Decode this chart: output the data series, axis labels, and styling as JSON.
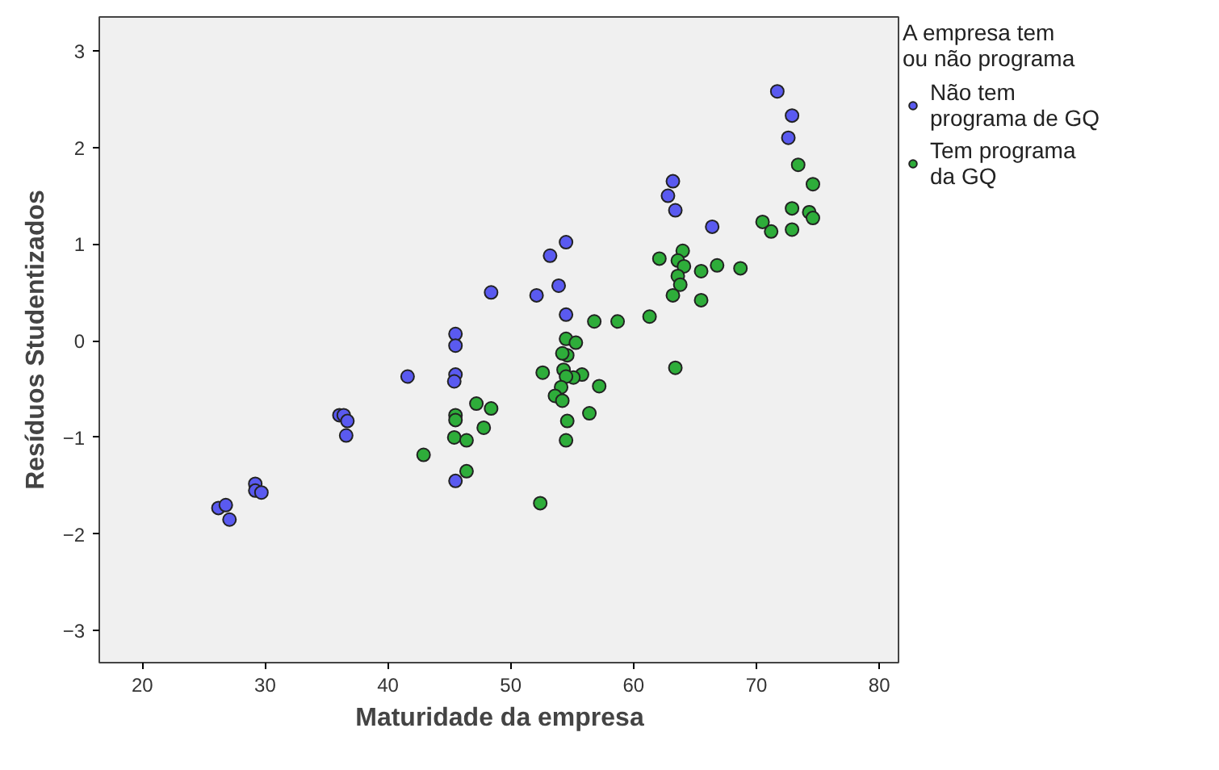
{
  "chart_data": {
    "type": "scatter",
    "xlabel": "Maturidade da empresa",
    "ylabel": "Resíduos Studentizados",
    "legend_title": "A empresa tem\nou não programa",
    "xlim": [
      16.5,
      81.7
    ],
    "ylim": [
      -3.33,
      3.35
    ],
    "xticks": [
      20,
      30,
      40,
      50,
      60,
      70,
      80
    ],
    "yticks": [
      -3,
      -2,
      -1,
      0,
      1,
      2,
      3
    ],
    "grid": false,
    "legend": "right",
    "marker": "circle",
    "series": [
      {
        "name": "Não tem\nprograma de GQ",
        "color": "#5a5af0",
        "x": [
          26.2,
          26.8,
          27.1,
          29.2,
          29.2,
          29.7,
          36.05,
          36.4,
          36.7,
          36.6,
          41.6,
          45.5,
          45.5,
          45.5,
          45.4,
          45.5,
          72.6,
          71.7,
          72.9,
          63.2,
          62.8,
          63.4,
          66.4,
          54.5,
          53.2,
          53.9,
          52.1,
          48.4,
          54.5
        ],
        "values": [
          -1.73,
          -1.7,
          -1.85,
          -1.48,
          -1.55,
          -1.57,
          -0.77,
          -0.77,
          -0.83,
          -0.98,
          -0.37,
          0.07,
          -0.05,
          -0.35,
          -0.42,
          -1.45,
          2.1,
          2.58,
          2.33,
          1.65,
          1.5,
          1.35,
          1.18,
          1.02,
          0.88,
          0.57,
          0.47,
          0.5,
          0.27
        ]
      },
      {
        "name": "Tem programa\nda GQ",
        "color": "#2ead3a",
        "x": [
          47.2,
          48.4,
          47.8,
          45.5,
          45.5,
          45.4,
          46.4,
          42.9,
          46.4,
          73.4,
          74.6,
          72.9,
          74.3,
          74.6,
          70.5,
          71.2,
          72.9,
          64.0,
          62.1,
          63.6,
          64.1,
          65.5,
          66.8,
          68.7,
          63.6,
          63.8,
          63.2,
          65.5,
          63.4,
          56.8,
          58.7,
          61.3,
          54.5,
          55.3,
          54.6,
          54.2,
          52.6,
          54.3,
          55.8,
          55.1,
          54.5,
          57.2,
          54.1,
          53.6,
          54.2,
          56.4,
          54.6,
          54.5,
          52.4
        ],
        "values": [
          -0.65,
          -0.7,
          -0.9,
          -0.77,
          -0.82,
          -1.0,
          -1.03,
          -1.18,
          -1.35,
          1.82,
          1.62,
          1.37,
          1.33,
          1.27,
          1.23,
          1.13,
          1.15,
          0.93,
          0.85,
          0.83,
          0.77,
          0.72,
          0.78,
          0.75,
          0.67,
          0.58,
          0.47,
          0.42,
          -0.28,
          0.2,
          0.2,
          0.25,
          0.02,
          -0.02,
          -0.15,
          -0.13,
          -0.33,
          -0.3,
          -0.35,
          -0.38,
          -0.37,
          -0.47,
          -0.48,
          -0.57,
          -0.62,
          -0.75,
          -0.83,
          -1.03,
          -1.68
        ]
      }
    ]
  }
}
